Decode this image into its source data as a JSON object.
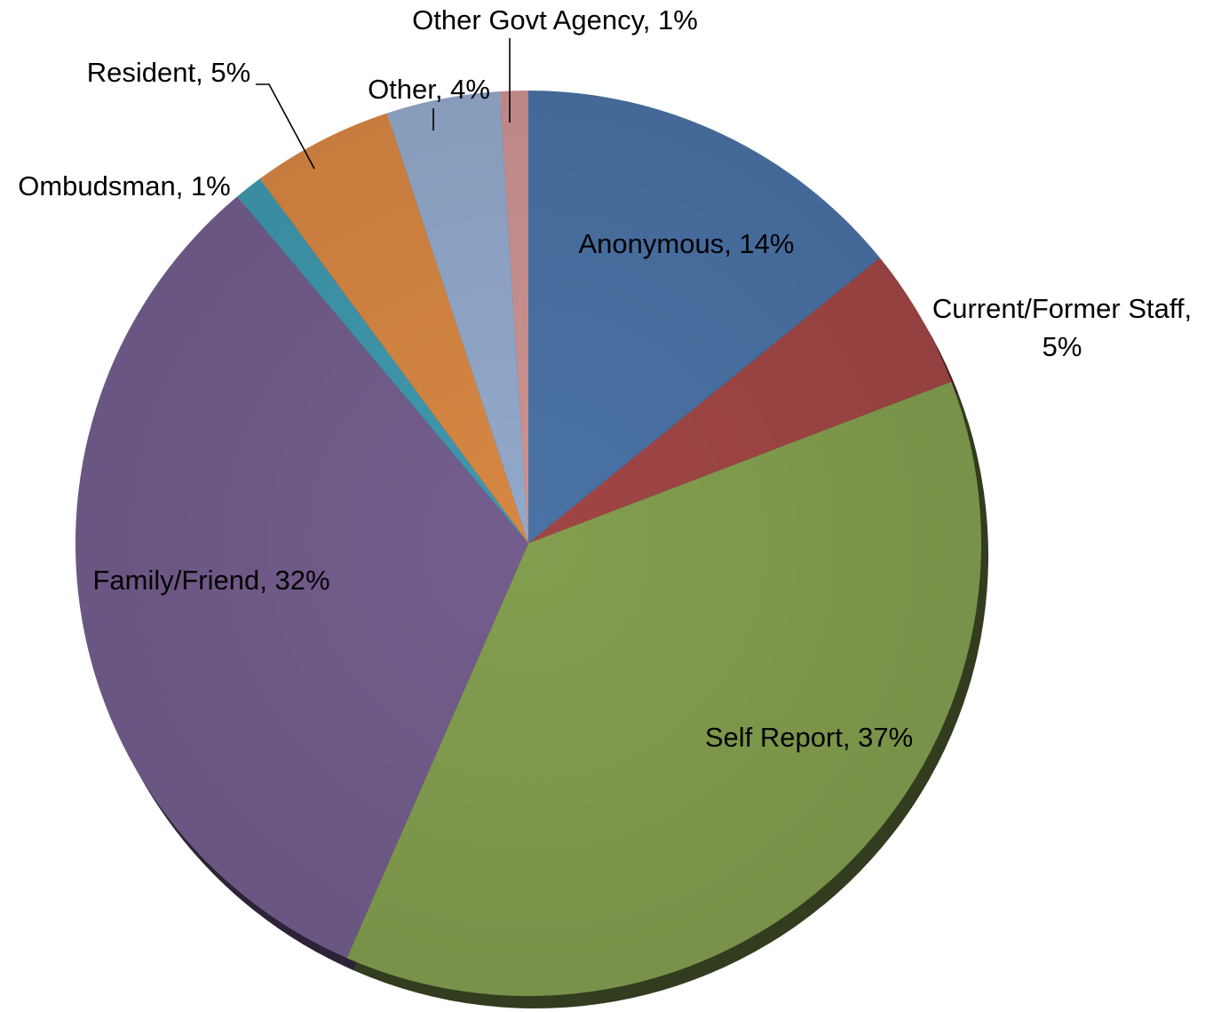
{
  "chart_data": {
    "type": "pie",
    "title": "",
    "slices": [
      {
        "label": "Anonymous",
        "value": 14,
        "text": "Anonymous, 14%",
        "color": "#4a72a5"
      },
      {
        "label": "Current/Former Staff",
        "value": 5,
        "text": "Current/Former Staff,",
        "text2": "5%",
        "color": "#a04645"
      },
      {
        "label": "Self Report",
        "value": 37,
        "text": "Self Report, 37%",
        "color": "#839e4f"
      },
      {
        "label": "Family/Friend",
        "value": 32,
        "text": "Family/Friend, 32%",
        "color": "#735d8d"
      },
      {
        "label": "Ombudsman",
        "value": 1,
        "text": "Ombudsman, 1%",
        "color": "#3f98ad"
      },
      {
        "label": "Resident",
        "value": 5,
        "text": "Resident, 5%",
        "color": "#d78743"
      },
      {
        "label": "Other",
        "value": 4,
        "text": "Other, 4%",
        "color": "#93a9cb"
      },
      {
        "label": "Other Govt Agency",
        "value": 1,
        "text": "Other Govt Agency, 1%",
        "color": "#cc9392"
      }
    ],
    "legend": "none",
    "data_labels": "category name and percentage"
  }
}
